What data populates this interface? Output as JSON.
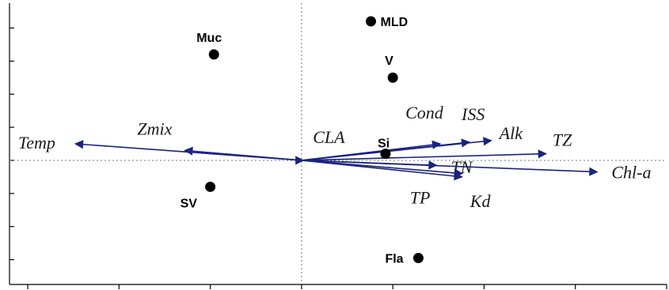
{
  "chart_data": {
    "type": "scatter",
    "title": "",
    "xlabel": "",
    "ylabel": "",
    "xlim": [
      -1.6,
      2.0
    ],
    "ylim": [
      -0.75,
      0.95
    ],
    "origin_lines": "dotted",
    "colors": {
      "vector": "#1a237e",
      "point": "#000000",
      "axis": "#000000",
      "guide": "#777777"
    },
    "points": [
      {
        "label": "MLD",
        "x": 0.38,
        "y": 0.84
      },
      {
        "label": "Muc",
        "x": -0.48,
        "y": 0.64
      },
      {
        "label": "V",
        "x": 0.5,
        "y": 0.5
      },
      {
        "label": "Si",
        "x": 0.46,
        "y": 0.04
      },
      {
        "label": "SV",
        "x": -0.5,
        "y": -0.16
      },
      {
        "label": "Fla",
        "x": 0.64,
        "y": -0.59
      }
    ],
    "vectors": [
      {
        "label": "Temp",
        "x": -1.24,
        "y": 0.1
      },
      {
        "label": "Zmix",
        "x": -0.64,
        "y": 0.06
      },
      {
        "label": "CLA",
        "x": 0.01,
        "y": 0.0
      },
      {
        "label": "Cond",
        "x": 0.76,
        "y": 0.1
      },
      {
        "label": "ISS",
        "x": 0.92,
        "y": 0.11
      },
      {
        "label": "Alk",
        "x": 1.04,
        "y": 0.12
      },
      {
        "label": "TZ",
        "x": 1.34,
        "y": 0.04
      },
      {
        "label": "TN",
        "x": 0.74,
        "y": -0.03
      },
      {
        "label": "TP",
        "x": 0.88,
        "y": -0.08
      },
      {
        "label": "Kd",
        "x": 0.88,
        "y": -0.1
      },
      {
        "label": "Chl-a",
        "x": 1.62,
        "y": -0.07
      }
    ],
    "xticks": [
      -1.5,
      -1.0,
      -0.5,
      0.0,
      0.5,
      1.0,
      1.5,
      2.0
    ],
    "yticks": [
      -0.6,
      -0.4,
      -0.2,
      0.0,
      0.2,
      0.4,
      0.6,
      0.8
    ]
  }
}
